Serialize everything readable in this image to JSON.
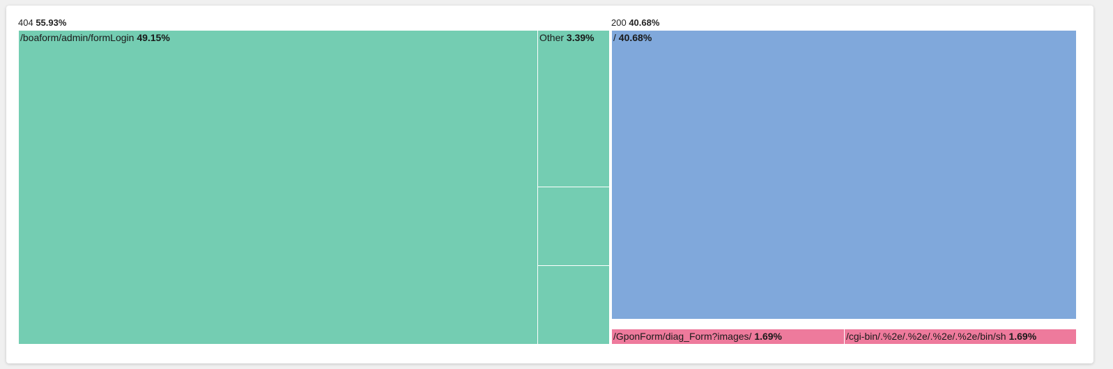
{
  "chart_data": {
    "type": "treemap",
    "title": "",
    "colors": {
      "404": "#74cdb2",
      "200": "#80a8db",
      "200-minor": "#ee7a9c"
    },
    "groups": [
      {
        "name": "404",
        "percent": "55.93%",
        "value": 55.93,
        "color": "#74cdb2",
        "children": [
          {
            "name": "/boaform/admin/formLogin",
            "percent": "49.15%",
            "value": 49.15
          },
          {
            "name": "Other",
            "percent": "3.39%",
            "value": 3.39
          },
          {
            "name": "",
            "percent": "",
            "value": 1.695
          },
          {
            "name": "",
            "percent": "",
            "value": 1.695
          }
        ]
      },
      {
        "name": "200",
        "percent": "40.68%",
        "value": 40.68,
        "color": "#80a8db",
        "children": [
          {
            "name": "/",
            "percent": "40.68%",
            "value": 40.68
          }
        ]
      },
      {
        "name": "",
        "percent": "",
        "value": 3.38,
        "color": "#ee7a9c",
        "children": [
          {
            "name": "/GponForm/diag_Form?images/",
            "percent": "1.69%",
            "value": 1.69
          },
          {
            "name": "/cgi-bin/.%2e/.%2e/.%2e/.%2e/bin/sh",
            "percent": "1.69%",
            "value": 1.69
          }
        ]
      }
    ]
  }
}
